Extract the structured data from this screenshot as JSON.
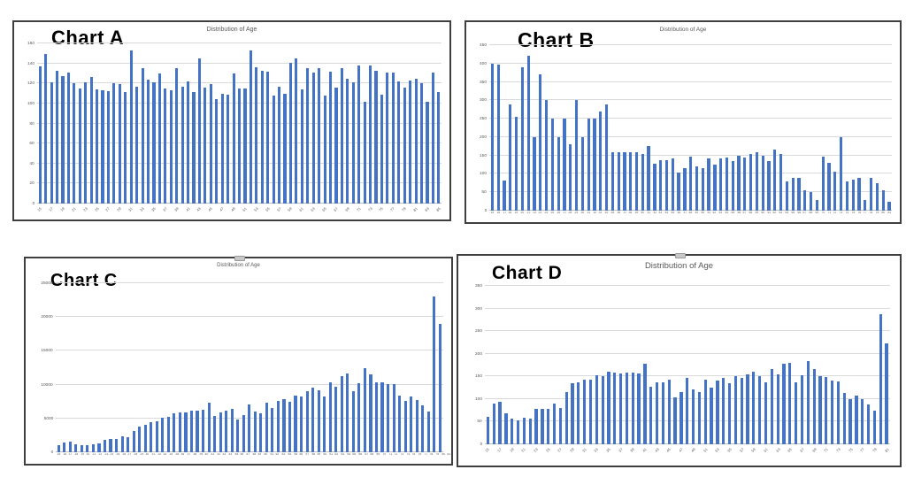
{
  "page": {
    "background": "#ffffff",
    "bar_color": "#4472C4",
    "gridline_color": "#d9d9d9",
    "text_color": "#595959"
  },
  "chart_data": [
    {
      "type": "bar",
      "label": "Chart A",
      "title": "Distribution of Age",
      "xlabel": "",
      "ylabel": "",
      "legend": "none",
      "grid": "horizontal",
      "x_label_style": "rotated-every-other",
      "ylim": [
        0,
        160
      ],
      "yticks": [
        0,
        20,
        40,
        60,
        80,
        100,
        120,
        140,
        160
      ],
      "x": [
        15,
        16,
        17,
        18,
        19,
        20,
        21,
        22,
        23,
        24,
        25,
        26,
        27,
        28,
        29,
        30,
        31,
        32,
        33,
        34,
        35,
        36,
        37,
        38,
        39,
        40,
        41,
        42,
        43,
        44,
        45,
        46,
        47,
        48,
        49,
        50,
        51,
        52,
        53,
        54,
        55,
        56,
        57,
        58,
        59,
        60,
        61,
        62,
        63,
        64,
        65,
        66,
        67,
        68,
        69,
        70,
        71,
        72,
        73,
        74,
        75,
        76,
        77,
        78,
        79,
        80,
        81,
        82,
        83,
        84,
        85
      ],
      "values": [
        137,
        149,
        121,
        133,
        127,
        131,
        120,
        115,
        121,
        126,
        114,
        113,
        112,
        120,
        119,
        111,
        153,
        117,
        135,
        124,
        121,
        130,
        115,
        113,
        135,
        117,
        122,
        111,
        145,
        116,
        119,
        104,
        110,
        109,
        130,
        115,
        115,
        153,
        136,
        133,
        132,
        108,
        117,
        110,
        141,
        145,
        114,
        135,
        131,
        135,
        108,
        132,
        116,
        135,
        125,
        121,
        138,
        102,
        138,
        133,
        109,
        131,
        131,
        122,
        116,
        123,
        125,
        120,
        102,
        131,
        111
      ]
    },
    {
      "type": "bar",
      "label": "Chart B",
      "title": "Distribution of Age",
      "xlabel": "",
      "ylabel": "",
      "legend": "none",
      "grid": "horizontal",
      "x_label_style": "horizontal-all",
      "ylim": [
        0,
        450
      ],
      "yticks": [
        0,
        50,
        100,
        150,
        200,
        250,
        300,
        350,
        400,
        450
      ],
      "x": [
        15,
        16,
        17,
        18,
        19,
        20,
        21,
        22,
        23,
        24,
        25,
        26,
        27,
        28,
        29,
        30,
        31,
        32,
        33,
        34,
        35,
        36,
        37,
        38,
        39,
        40,
        41,
        42,
        43,
        44,
        45,
        46,
        47,
        48,
        49,
        50,
        51,
        52,
        53,
        54,
        55,
        56,
        57,
        58,
        59,
        60,
        61,
        62,
        63,
        64,
        65,
        66,
        67,
        68,
        69,
        70,
        71,
        72,
        73,
        74,
        75,
        76,
        77,
        78,
        79,
        80,
        81
      ],
      "values": [
        400,
        398,
        82,
        290,
        255,
        390,
        420,
        200,
        370,
        300,
        250,
        200,
        250,
        180,
        300,
        200,
        250,
        250,
        270,
        290,
        160,
        158,
        158,
        158,
        158,
        155,
        175,
        128,
        138,
        138,
        142,
        103,
        115,
        148,
        120,
        115,
        142,
        125,
        142,
        144,
        135,
        150,
        144,
        153,
        158,
        150,
        135,
        165,
        153,
        80,
        90,
        88,
        55,
        50,
        30,
        148,
        130,
        105,
        200,
        80,
        85,
        88,
        28,
        90,
        75,
        55,
        25
      ]
    },
    {
      "type": "bar",
      "label": "Chart C",
      "title": "Distribution of Age",
      "xlabel": "",
      "ylabel": "",
      "legend": "none",
      "grid": "horizontal",
      "x_label_style": "horizontal-all",
      "ylim": [
        0,
        25000
      ],
      "yticks": [
        0,
        5000,
        10000,
        15000,
        20000,
        25000
      ],
      "x": [
        15,
        16,
        17,
        18,
        19,
        20,
        21,
        22,
        23,
        24,
        25,
        26,
        27,
        28,
        29,
        30,
        31,
        32,
        33,
        34,
        35,
        36,
        37,
        38,
        39,
        40,
        41,
        42,
        43,
        44,
        45,
        46,
        47,
        48,
        49,
        50,
        51,
        52,
        53,
        54,
        55,
        56,
        57,
        58,
        59,
        60,
        61,
        62,
        63,
        64,
        65,
        66,
        67,
        68,
        69,
        70,
        71,
        72,
        73,
        74,
        75,
        76,
        77,
        78,
        79,
        80,
        81
      ],
      "values": [
        1000,
        1500,
        1600,
        1200,
        1100,
        1100,
        1200,
        1300,
        1800,
        1900,
        2000,
        2400,
        2200,
        3200,
        3800,
        4100,
        4500,
        4600,
        5100,
        5200,
        5700,
        5900,
        5900,
        6100,
        6200,
        6300,
        7300,
        5400,
        5900,
        6100,
        6400,
        4800,
        5500,
        7100,
        6000,
        5800,
        7300,
        6500,
        7600,
        7800,
        7500,
        8400,
        8300,
        9000,
        9500,
        9100,
        8300,
        10300,
        9700,
        11300,
        11700,
        9000,
        10200,
        12500,
        11500,
        10400,
        10400,
        10100,
        10100,
        8400,
        7600,
        8200,
        7700,
        7000,
        6000,
        23000,
        19000
      ]
    },
    {
      "type": "bar",
      "label": "Chart D",
      "title": "Distribution of Age",
      "xlabel": "",
      "ylabel": "",
      "legend": "none",
      "grid": "horizontal",
      "x_label_style": "rotated-every-other",
      "ylim": [
        0,
        350
      ],
      "yticks": [
        0,
        50,
        100,
        150,
        200,
        250,
        300,
        350
      ],
      "x": [
        15,
        16,
        17,
        18,
        19,
        20,
        21,
        22,
        23,
        24,
        25,
        26,
        27,
        28,
        29,
        30,
        31,
        32,
        33,
        34,
        35,
        36,
        37,
        38,
        39,
        40,
        41,
        42,
        43,
        44,
        45,
        46,
        47,
        48,
        49,
        50,
        51,
        52,
        53,
        54,
        55,
        56,
        57,
        58,
        59,
        60,
        61,
        62,
        63,
        64,
        65,
        66,
        67,
        68,
        69,
        70,
        71,
        72,
        73,
        74,
        75,
        76,
        77,
        78,
        79,
        80,
        81
      ],
      "values": [
        60,
        90,
        94,
        68,
        56,
        53,
        58,
        57,
        79,
        78,
        78,
        90,
        80,
        116,
        135,
        137,
        143,
        143,
        152,
        150,
        161,
        158,
        157,
        158,
        158,
        156,
        177,
        128,
        137,
        137,
        143,
        103,
        116,
        147,
        121,
        116,
        142,
        125,
        141,
        146,
        135,
        151,
        146,
        154,
        160,
        150,
        136,
        166,
        155,
        178,
        180,
        136,
        152,
        184,
        166,
        150,
        149,
        140,
        138,
        113,
        100,
        107,
        99,
        88,
        75,
        288,
        223
      ]
    }
  ]
}
